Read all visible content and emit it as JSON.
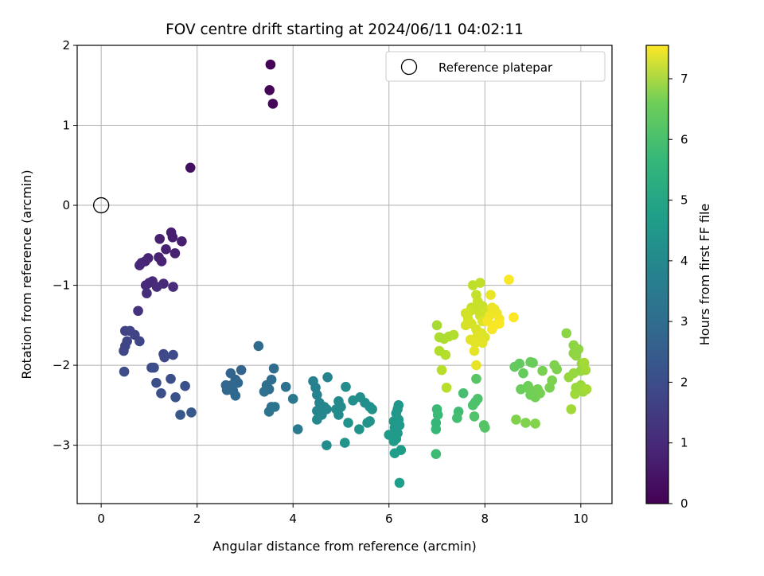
{
  "chart_data": {
    "type": "scatter",
    "title": "FOV centre drift starting at 2024/06/11 04:02:11",
    "xlabel": "Angular distance from reference (arcmin)",
    "ylabel": "Rotation from reference (arcmin)",
    "colorbar_label": "Hours from first FF file",
    "xlim": [
      -0.5,
      10.65
    ],
    "ylim": [
      -3.73,
      2.0
    ],
    "xticks": [
      0,
      2,
      4,
      6,
      8,
      10
    ],
    "yticks": [
      -3,
      -2,
      -1,
      0,
      1,
      2
    ],
    "cticks": [
      0,
      1,
      2,
      3,
      4,
      5,
      6,
      7
    ],
    "clim": [
      0,
      7.55
    ],
    "colormap": "viridis",
    "grid": true,
    "legend": {
      "placement": "top-right",
      "entries": [
        "Reference platepar"
      ]
    },
    "reference_point": {
      "x": 0,
      "y": 0
    },
    "points": [
      [
        3.53,
        1.76,
        0.05
      ],
      [
        3.51,
        1.44,
        0.08
      ],
      [
        3.58,
        1.27,
        0.1
      ],
      [
        1.86,
        0.47,
        0.3
      ],
      [
        1.46,
        -0.34,
        0.6
      ],
      [
        1.49,
        -0.4,
        0.62
      ],
      [
        1.68,
        -0.45,
        0.64
      ],
      [
        1.22,
        -0.42,
        0.66
      ],
      [
        1.35,
        -0.55,
        0.68
      ],
      [
        1.54,
        -0.6,
        0.7
      ],
      [
        1.2,
        -0.65,
        0.72
      ],
      [
        1.26,
        -0.7,
        0.74
      ],
      [
        0.98,
        -0.66,
        0.76
      ],
      [
        0.92,
        -0.7,
        0.78
      ],
      [
        0.84,
        -0.72,
        0.8
      ],
      [
        0.8,
        -0.75,
        0.82
      ],
      [
        1.3,
        -0.98,
        0.86
      ],
      [
        1.07,
        -0.95,
        0.88
      ],
      [
        1.0,
        -0.97,
        0.9
      ],
      [
        0.93,
        -1.0,
        0.92
      ],
      [
        1.16,
        -1.02,
        0.94
      ],
      [
        1.5,
        -1.02,
        0.96
      ],
      [
        0.95,
        -1.1,
        0.98
      ],
      [
        0.77,
        -1.32,
        1.1
      ],
      [
        0.5,
        -1.57,
        1.5
      ],
      [
        0.6,
        -1.57,
        1.52
      ],
      [
        0.7,
        -1.62,
        1.54
      ],
      [
        0.54,
        -1.7,
        1.56
      ],
      [
        0.8,
        -1.7,
        1.58
      ],
      [
        0.5,
        -1.76,
        1.6
      ],
      [
        0.47,
        -1.82,
        1.62
      ],
      [
        1.3,
        -1.86,
        1.65
      ],
      [
        1.5,
        -1.87,
        1.68
      ],
      [
        1.32,
        -1.9,
        1.7
      ],
      [
        0.48,
        -2.08,
        1.72
      ],
      [
        1.05,
        -2.03,
        1.75
      ],
      [
        1.1,
        -2.03,
        1.78
      ],
      [
        1.45,
        -2.17,
        1.8
      ],
      [
        1.15,
        -2.22,
        1.82
      ],
      [
        1.25,
        -2.35,
        1.85
      ],
      [
        1.75,
        -2.26,
        1.88
      ],
      [
        1.55,
        -2.4,
        1.9
      ],
      [
        1.65,
        -2.62,
        2.05
      ],
      [
        1.88,
        -2.59,
        2.1
      ],
      [
        2.7,
        -2.1,
        2.4
      ],
      [
        2.92,
        -2.06,
        2.42
      ],
      [
        2.8,
        -2.18,
        2.44
      ],
      [
        2.6,
        -2.25,
        2.46
      ],
      [
        2.72,
        -2.25,
        2.48
      ],
      [
        2.85,
        -2.22,
        2.5
      ],
      [
        2.62,
        -2.31,
        2.52
      ],
      [
        2.75,
        -2.32,
        2.54
      ],
      [
        2.8,
        -2.38,
        2.56
      ],
      [
        3.28,
        -1.76,
        2.6
      ],
      [
        3.6,
        -2.04,
        2.65
      ],
      [
        3.55,
        -2.18,
        2.7
      ],
      [
        3.45,
        -2.25,
        2.72
      ],
      [
        3.5,
        -2.3,
        2.74
      ],
      [
        3.4,
        -2.33,
        2.76
      ],
      [
        3.85,
        -2.27,
        2.8
      ],
      [
        3.55,
        -2.52,
        2.85
      ],
      [
        3.5,
        -2.58,
        2.9
      ],
      [
        3.62,
        -2.52,
        2.95
      ],
      [
        4.0,
        -2.42,
        3.0
      ],
      [
        4.1,
        -2.8,
        3.1
      ],
      [
        4.42,
        -2.2,
        3.3
      ],
      [
        4.47,
        -2.28,
        3.33
      ],
      [
        4.5,
        -2.37,
        3.36
      ],
      [
        4.72,
        -2.15,
        3.4
      ],
      [
        4.55,
        -2.47,
        3.42
      ],
      [
        4.5,
        -2.57,
        3.45
      ],
      [
        4.65,
        -2.52,
        3.47
      ],
      [
        4.7,
        -2.55,
        3.5
      ],
      [
        4.6,
        -2.62,
        3.52
      ],
      [
        4.5,
        -2.68,
        3.55
      ],
      [
        4.95,
        -2.45,
        3.58
      ],
      [
        4.9,
        -2.55,
        3.6
      ],
      [
        5.0,
        -2.52,
        3.62
      ],
      [
        4.95,
        -2.62,
        3.64
      ],
      [
        5.1,
        -2.27,
        3.66
      ],
      [
        4.7,
        -3.0,
        3.7
      ],
      [
        5.25,
        -2.44,
        3.72
      ],
      [
        5.4,
        -2.4,
        3.74
      ],
      [
        5.5,
        -2.47,
        3.76
      ],
      [
        5.6,
        -2.52,
        3.78
      ],
      [
        5.65,
        -2.55,
        3.8
      ],
      [
        5.55,
        -2.72,
        3.82
      ],
      [
        5.6,
        -2.7,
        3.84
      ],
      [
        5.38,
        -2.8,
        3.86
      ],
      [
        5.15,
        -2.72,
        3.88
      ],
      [
        5.08,
        -2.97,
        3.9
      ],
      [
        6.2,
        -2.5,
        3.95
      ],
      [
        6.18,
        -2.55,
        3.97
      ],
      [
        6.15,
        -2.6,
        3.99
      ],
      [
        6.1,
        -2.7,
        4.0
      ],
      [
        6.2,
        -2.68,
        4.02
      ],
      [
        6.12,
        -2.78,
        4.04
      ],
      [
        6.22,
        -2.75,
        4.06
      ],
      [
        6.18,
        -2.85,
        4.08
      ],
      [
        6.0,
        -2.87,
        4.1
      ],
      [
        6.1,
        -2.95,
        4.12
      ],
      [
        6.15,
        -2.92,
        4.14
      ],
      [
        6.25,
        -3.06,
        4.16
      ],
      [
        6.12,
        -3.1,
        4.18
      ],
      [
        6.22,
        -3.47,
        4.2
      ],
      [
        6.98,
        -2.72,
        5.0
      ],
      [
        6.98,
        -2.8,
        5.05
      ],
      [
        7.0,
        -2.55,
        5.1
      ],
      [
        7.02,
        -2.62,
        5.12
      ],
      [
        6.98,
        -3.11,
        5.15
      ],
      [
        7.45,
        -2.58,
        5.2
      ],
      [
        7.42,
        -2.66,
        5.25
      ],
      [
        7.55,
        -2.35,
        5.3
      ],
      [
        7.8,
        -2.46,
        5.35
      ],
      [
        7.75,
        -2.5,
        5.38
      ],
      [
        7.85,
        -2.42,
        5.4
      ],
      [
        7.78,
        -2.64,
        5.45
      ],
      [
        7.98,
        -2.75,
        5.5
      ],
      [
        8.0,
        -2.78,
        5.52
      ],
      [
        7.82,
        -2.17,
        5.55
      ],
      [
        8.72,
        -1.98,
        5.7
      ],
      [
        8.62,
        -2.02,
        5.72
      ],
      [
        8.8,
        -2.1,
        5.75
      ],
      [
        8.95,
        -1.96,
        5.78
      ],
      [
        9.0,
        -1.97,
        5.8
      ],
      [
        8.75,
        -2.3,
        5.82
      ],
      [
        8.9,
        -2.26,
        5.84
      ],
      [
        8.95,
        -2.37,
        5.86
      ],
      [
        9.05,
        -2.33,
        5.88
      ],
      [
        8.93,
        -2.3,
        5.9
      ],
      [
        9.05,
        -2.4,
        5.92
      ],
      [
        9.1,
        -2.3,
        5.94
      ],
      [
        9.15,
        -2.35,
        5.96
      ],
      [
        9.2,
        -2.07,
        5.98
      ],
      [
        9.35,
        -2.28,
        6.0
      ],
      [
        9.4,
        -2.19,
        6.02
      ],
      [
        9.5,
        -2.05,
        6.04
      ],
      [
        9.45,
        -2.0,
        6.06
      ],
      [
        8.65,
        -2.68,
        6.08
      ],
      [
        8.85,
        -2.72,
        6.1
      ],
      [
        9.05,
        -2.73,
        6.12
      ],
      [
        9.7,
        -1.6,
        6.2
      ],
      [
        9.85,
        -1.75,
        6.22
      ],
      [
        9.95,
        -1.8,
        6.24
      ],
      [
        9.85,
        -1.85,
        6.26
      ],
      [
        9.9,
        -1.88,
        6.28
      ],
      [
        10.02,
        -1.98,
        6.3
      ],
      [
        10.0,
        -2.07,
        6.32
      ],
      [
        9.85,
        -2.1,
        6.34
      ],
      [
        9.75,
        -2.15,
        6.36
      ],
      [
        9.9,
        -2.28,
        6.38
      ],
      [
        10.0,
        -2.25,
        6.4
      ],
      [
        10.05,
        -2.33,
        6.42
      ],
      [
        9.88,
        -2.36,
        6.44
      ],
      [
        9.8,
        -2.55,
        6.46
      ],
      [
        10.1,
        -2.06,
        6.48
      ],
      [
        10.07,
        -1.97,
        6.5
      ],
      [
        10.12,
        -2.3,
        6.52
      ],
      [
        7.0,
        -1.5,
        6.55
      ],
      [
        7.05,
        -1.65,
        6.6
      ],
      [
        7.15,
        -1.67,
        6.62
      ],
      [
        7.25,
        -1.64,
        6.64
      ],
      [
        7.35,
        -1.62,
        6.66
      ],
      [
        7.05,
        -1.82,
        6.68
      ],
      [
        7.18,
        -1.87,
        6.7
      ],
      [
        7.1,
        -2.06,
        6.72
      ],
      [
        7.2,
        -2.28,
        6.74
      ],
      [
        7.75,
        -1.0,
        6.8
      ],
      [
        7.9,
        -0.97,
        6.85
      ],
      [
        7.82,
        -1.12,
        6.88
      ],
      [
        7.72,
        -1.28,
        6.9
      ],
      [
        7.8,
        -1.3,
        6.92
      ],
      [
        7.85,
        -1.2,
        6.94
      ],
      [
        7.95,
        -1.26,
        6.96
      ],
      [
        7.7,
        -1.32,
        6.98
      ],
      [
        7.9,
        -1.38,
        7.0
      ],
      [
        8.05,
        -1.32,
        7.02
      ],
      [
        7.6,
        -1.35,
        7.04
      ],
      [
        7.65,
        -1.42,
        7.06
      ],
      [
        7.72,
        -1.48,
        7.08
      ],
      [
        7.6,
        -1.5,
        7.1
      ],
      [
        7.82,
        -1.55,
        7.12
      ],
      [
        7.95,
        -1.45,
        7.14
      ],
      [
        7.93,
        -1.6,
        7.16
      ],
      [
        8.0,
        -1.65,
        7.18
      ],
      [
        7.85,
        -1.62,
        7.2
      ],
      [
        7.7,
        -1.68,
        7.22
      ],
      [
        7.8,
        -1.72,
        7.24
      ],
      [
        7.95,
        -1.72,
        7.26
      ],
      [
        7.78,
        -1.82,
        7.28
      ],
      [
        7.82,
        -2.0,
        7.3
      ],
      [
        8.12,
        -1.12,
        7.32
      ],
      [
        8.15,
        -1.28,
        7.34
      ],
      [
        8.2,
        -1.3,
        7.36
      ],
      [
        8.25,
        -1.35,
        7.38
      ],
      [
        8.1,
        -1.38,
        7.4
      ],
      [
        8.3,
        -1.42,
        7.42
      ],
      [
        8.05,
        -1.45,
        7.44
      ],
      [
        8.2,
        -1.5,
        7.46
      ],
      [
        8.15,
        -1.55,
        7.48
      ],
      [
        8.3,
        -1.48,
        7.5
      ],
      [
        8.5,
        -0.93,
        7.52
      ],
      [
        8.6,
        -1.4,
        7.54
      ]
    ]
  }
}
